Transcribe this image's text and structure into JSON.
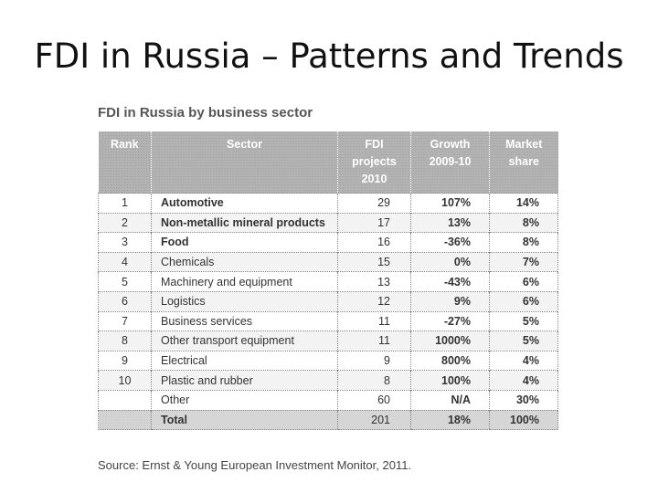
{
  "slide": {
    "title": "FDI in Russia – Patterns and Trends"
  },
  "figure": {
    "title": "FDI in Russia by business sector",
    "source": "Source: Ernst & Young European Investment Monitor, 2011."
  },
  "table": {
    "headers": [
      {
        "lines": [
          "Rank"
        ]
      },
      {
        "lines": [
          "Sector"
        ]
      },
      {
        "lines": [
          "FDI",
          "projects",
          "2010"
        ]
      },
      {
        "lines": [
          "Growth",
          "2009-10"
        ]
      },
      {
        "lines": [
          "Market",
          "share"
        ]
      }
    ],
    "rows": [
      [
        "1",
        "Automotive",
        "29",
        "107%",
        "14%"
      ],
      [
        "2",
        "Non-metallic mineral products",
        "17",
        "13%",
        "8%"
      ],
      [
        "3",
        "Food",
        "16",
        "-36%",
        "8%"
      ],
      [
        "4",
        "Chemicals",
        "15",
        "0%",
        "7%"
      ],
      [
        "5",
        "Machinery and equipment",
        "13",
        "-43%",
        "6%"
      ],
      [
        "6",
        "Logistics",
        "12",
        "9%",
        "6%"
      ],
      [
        "7",
        "Business services",
        "11",
        "-27%",
        "5%"
      ],
      [
        "8",
        "Other transport equipment",
        "11",
        "1000%",
        "5%"
      ],
      [
        "9",
        "Electrical",
        "9",
        "800%",
        "4%"
      ],
      [
        "10",
        "Plastic and rubber",
        "8",
        "100%",
        "4%"
      ],
      [
        "",
        "Other",
        "60",
        "N/A",
        "30%"
      ],
      [
        "",
        "Total",
        "201",
        "18%",
        "100%"
      ]
    ]
  }
}
